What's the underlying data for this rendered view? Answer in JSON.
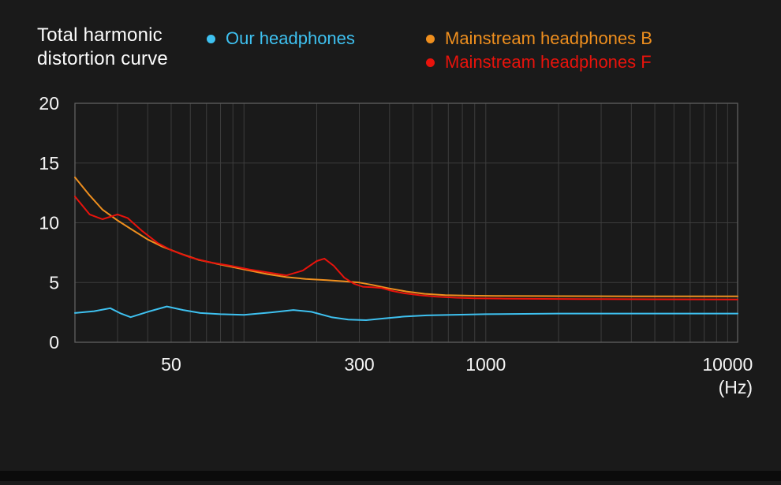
{
  "title": "Total harmonic distortion curve",
  "legend": [
    {
      "label": "Our headphones",
      "color": "#3ec1f0"
    },
    {
      "label": "Mainstream headphones B",
      "color": "#ef8f1e"
    },
    {
      "label": "Mainstream headphones F",
      "color": "#e8130c"
    }
  ],
  "x_unit_label": "(Hz)",
  "chart_data": {
    "type": "line",
    "title": "Total harmonic distortion curve",
    "x_scale": "log",
    "x_range": [
      20,
      11000
    ],
    "y_range": [
      0,
      20
    ],
    "grid": true,
    "y_ticks": [
      {
        "value": 0,
        "label": "0"
      },
      {
        "value": 5,
        "label": "5"
      },
      {
        "value": 10,
        "label": "10"
      },
      {
        "value": 15,
        "label": "15"
      },
      {
        "value": 20,
        "label": "20"
      }
    ],
    "x_ticks": [
      {
        "value": 50,
        "label": "50"
      },
      {
        "value": 300,
        "label": "300"
      },
      {
        "value": 1000,
        "label": "1000"
      },
      {
        "value": 10000,
        "label": "10000"
      }
    ],
    "grid_x": [
      30,
      40,
      50,
      60,
      70,
      80,
      90,
      100,
      200,
      300,
      400,
      500,
      600,
      700,
      800,
      900,
      1000,
      2000,
      3000,
      4000,
      5000,
      6000,
      7000,
      8000,
      9000,
      10000
    ],
    "style": {
      "grid_color": "#3d3d3d",
      "border_color": "#606060",
      "tick_text_color": "#f5f5f5",
      "line_width": 2
    },
    "series": [
      {
        "name": "Our headphones",
        "color": "#3ec1f0",
        "points": [
          [
            20,
            2.45
          ],
          [
            24,
            2.6
          ],
          [
            28,
            2.85
          ],
          [
            31,
            2.4
          ],
          [
            34,
            2.1
          ],
          [
            40,
            2.55
          ],
          [
            48,
            3.0
          ],
          [
            56,
            2.7
          ],
          [
            66,
            2.45
          ],
          [
            80,
            2.35
          ],
          [
            100,
            2.3
          ],
          [
            130,
            2.5
          ],
          [
            160,
            2.7
          ],
          [
            190,
            2.55
          ],
          [
            230,
            2.1
          ],
          [
            270,
            1.9
          ],
          [
            320,
            1.85
          ],
          [
            380,
            2.0
          ],
          [
            460,
            2.15
          ],
          [
            570,
            2.25
          ],
          [
            720,
            2.3
          ],
          [
            1000,
            2.35
          ],
          [
            2000,
            2.4
          ],
          [
            5000,
            2.4
          ],
          [
            11000,
            2.4
          ]
        ]
      },
      {
        "name": "Mainstream headphones B",
        "color": "#ef8f1e",
        "points": [
          [
            20,
            13.8
          ],
          [
            23,
            12.3
          ],
          [
            26,
            11.1
          ],
          [
            30,
            10.2
          ],
          [
            34,
            9.5
          ],
          [
            40,
            8.6
          ],
          [
            46,
            8.0
          ],
          [
            55,
            7.4
          ],
          [
            65,
            6.9
          ],
          [
            80,
            6.5
          ],
          [
            100,
            6.1
          ],
          [
            125,
            5.7
          ],
          [
            150,
            5.45
          ],
          [
            180,
            5.3
          ],
          [
            220,
            5.2
          ],
          [
            260,
            5.1
          ],
          [
            300,
            5.0
          ],
          [
            340,
            4.8
          ],
          [
            400,
            4.5
          ],
          [
            470,
            4.25
          ],
          [
            560,
            4.05
          ],
          [
            680,
            3.95
          ],
          [
            850,
            3.9
          ],
          [
            1100,
            3.88
          ],
          [
            2000,
            3.86
          ],
          [
            4000,
            3.85
          ],
          [
            7000,
            3.85
          ],
          [
            11000,
            3.85
          ]
        ]
      },
      {
        "name": "Mainstream headphones F",
        "color": "#e8130c",
        "points": [
          [
            20,
            12.2
          ],
          [
            23,
            10.7
          ],
          [
            26,
            10.3
          ],
          [
            30,
            10.7
          ],
          [
            33,
            10.4
          ],
          [
            38,
            9.3
          ],
          [
            44,
            8.3
          ],
          [
            50,
            7.7
          ],
          [
            60,
            7.1
          ],
          [
            72,
            6.7
          ],
          [
            88,
            6.4
          ],
          [
            105,
            6.1
          ],
          [
            125,
            5.85
          ],
          [
            150,
            5.6
          ],
          [
            175,
            6.0
          ],
          [
            200,
            6.8
          ],
          [
            215,
            7.0
          ],
          [
            235,
            6.4
          ],
          [
            260,
            5.4
          ],
          [
            285,
            4.9
          ],
          [
            310,
            4.65
          ],
          [
            340,
            4.6
          ],
          [
            370,
            4.55
          ],
          [
            410,
            4.3
          ],
          [
            460,
            4.1
          ],
          [
            530,
            3.95
          ],
          [
            620,
            3.82
          ],
          [
            750,
            3.73
          ],
          [
            900,
            3.68
          ],
          [
            1200,
            3.65
          ],
          [
            2500,
            3.62
          ],
          [
            5000,
            3.6
          ],
          [
            11000,
            3.58
          ]
        ]
      }
    ]
  }
}
